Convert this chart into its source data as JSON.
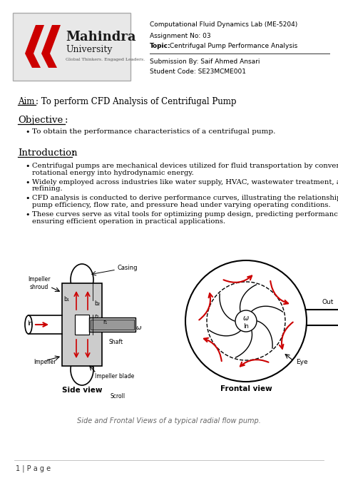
{
  "title": "Computational Fluid Dynamics Lab (ME-5204)",
  "assignment": "Assignment No: 03",
  "topic_label": "Topic:",
  "topic_text": "Centrifugal Pump Performance Analysis",
  "submission": "Submission By: Saif Ahmed Ansari",
  "student_code": "Student Code: SE23MCME001",
  "aim_label": "Aim",
  "aim_text": ": To perform CFD Analysis of Centrifugal Pump",
  "objective_label": "Objective",
  "objective_colon": ":",
  "objective_bullet": "To obtain the performance characteristics of a centrifugal pump.",
  "intro_label": "Introduction",
  "intro_colon": ":",
  "intro_bullet_lines": [
    [
      "Centrifugal pumps are mechanical devices utilized for fluid transportation by converting",
      "rotational energy into hydrodynamic energy."
    ],
    [
      "Widely employed across industries like water supply, HVAC, wastewater treatment, and oil",
      "refining."
    ],
    [
      "CFD analysis is conducted to derive performance curves, illustrating the relationship between",
      "pump efficiency, flow rate, and pressure head under varying operating conditions."
    ],
    [
      "These curves serve as vital tools for optimizing pump design, predicting performance, and",
      "ensuring efficient operation in practical applications."
    ]
  ],
  "caption": "Side and Frontal Views of a typical radial flow pump.",
  "page_number": "1 | P a g e",
  "bg_color": "#ffffff",
  "text_color": "#000000",
  "logo_box_color": "#e8e8e8",
  "red_color": "#cc0000",
  "gray_color": "#aaaaaa",
  "dark_gray": "#888888"
}
